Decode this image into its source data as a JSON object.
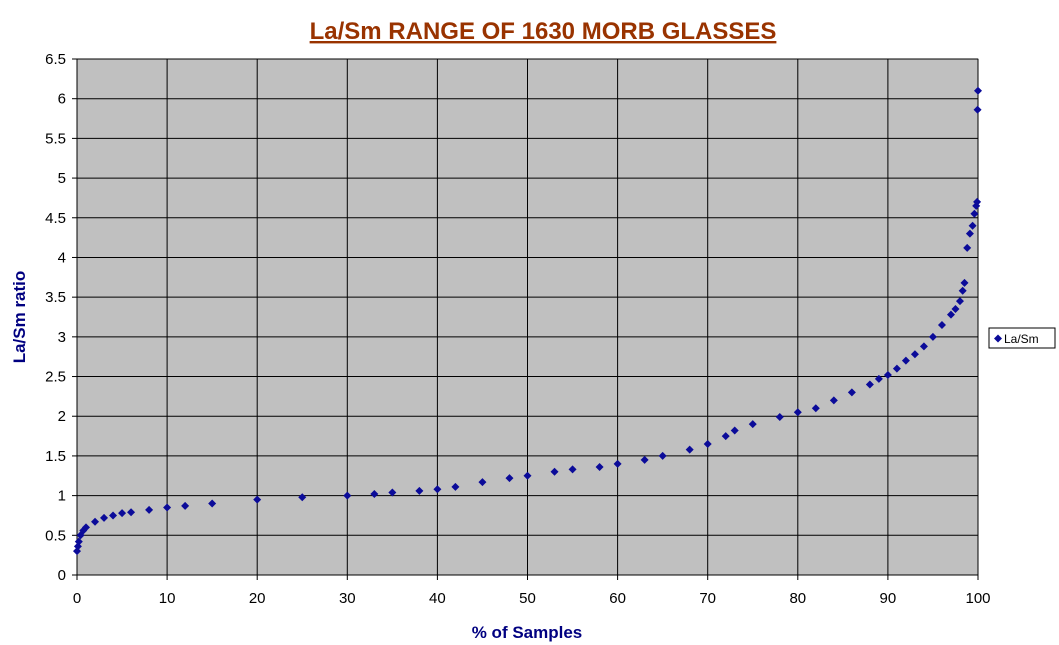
{
  "chart_data": {
    "type": "scatter",
    "title": "La/Sm RANGE OF 1630 MORB GLASSES",
    "xlabel": "% of Samples",
    "ylabel": "La/Sm ratio",
    "xlim": [
      0,
      100
    ],
    "ylim": [
      0,
      6.5
    ],
    "x_ticks": [
      "0",
      "10",
      "20",
      "30",
      "40",
      "50",
      "60",
      "70",
      "80",
      "90",
      "100"
    ],
    "y_ticks": [
      "0",
      "0.5",
      "1",
      "1.5",
      "2",
      "2.5",
      "3",
      "3.5",
      "4",
      "4.5",
      "5",
      "5.5",
      "6",
      "6.5"
    ],
    "grid": true,
    "legend_position": "right",
    "series": [
      {
        "name": "La/Sm",
        "marker": "diamond",
        "color": "#0B0B99",
        "curve": [
          [
            0,
            0.3
          ],
          [
            0.1,
            0.36
          ],
          [
            0.2,
            0.42
          ],
          [
            0.4,
            0.5
          ],
          [
            0.7,
            0.56
          ],
          [
            1,
            0.6
          ],
          [
            2,
            0.67
          ],
          [
            3,
            0.72
          ],
          [
            4,
            0.75
          ],
          [
            5,
            0.78
          ],
          [
            6,
            0.79
          ],
          [
            8,
            0.82
          ],
          [
            10,
            0.85
          ],
          [
            12,
            0.87
          ],
          [
            15,
            0.9
          ],
          [
            20,
            0.95
          ],
          [
            25,
            0.98
          ],
          [
            30,
            1.0
          ],
          [
            33,
            1.02
          ],
          [
            35,
            1.04
          ],
          [
            38,
            1.06
          ],
          [
            40,
            1.08
          ],
          [
            42,
            1.11
          ],
          [
            45,
            1.17
          ],
          [
            48,
            1.22
          ],
          [
            50,
            1.25
          ],
          [
            53,
            1.3
          ],
          [
            55,
            1.33
          ],
          [
            58,
            1.36
          ],
          [
            60,
            1.4
          ],
          [
            63,
            1.45
          ],
          [
            65,
            1.5
          ],
          [
            68,
            1.58
          ],
          [
            70,
            1.65
          ],
          [
            72,
            1.75
          ],
          [
            73,
            1.82
          ],
          [
            75,
            1.9
          ],
          [
            78,
            1.99
          ],
          [
            80,
            2.05
          ],
          [
            82,
            2.1
          ],
          [
            84,
            2.2
          ],
          [
            86,
            2.3
          ],
          [
            88,
            2.4
          ],
          [
            89,
            2.47
          ],
          [
            90,
            2.52
          ],
          [
            91,
            2.6
          ],
          [
            92,
            2.7
          ],
          [
            93,
            2.78
          ],
          [
            94,
            2.88
          ],
          [
            95,
            3.0
          ],
          [
            96,
            3.15
          ],
          [
            97,
            3.28
          ],
          [
            97.5,
            3.35
          ],
          [
            98,
            3.45
          ],
          [
            98.3,
            3.58
          ],
          [
            98.5,
            3.68
          ],
          [
            98.8,
            4.12
          ],
          [
            99.1,
            4.3
          ],
          [
            99.4,
            4.4
          ],
          [
            99.6,
            4.55
          ],
          [
            99.8,
            4.65
          ],
          [
            99.9,
            4.7
          ],
          [
            99.95,
            5.86
          ],
          [
            100,
            6.1
          ]
        ]
      }
    ]
  },
  "colors": {
    "title": "#993300",
    "axis_title": "#000080",
    "plot_background": "#C0C0C0",
    "grid": "#000000",
    "marker": "#0B0B99"
  }
}
